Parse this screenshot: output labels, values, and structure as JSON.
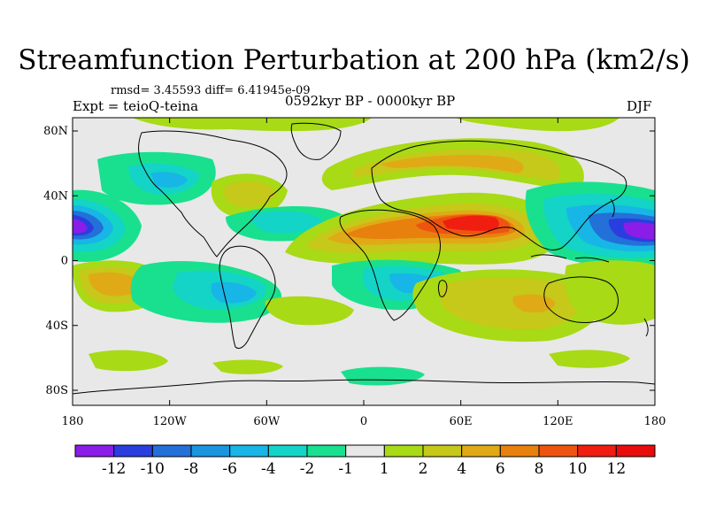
{
  "title": "Streamfunction Perturbation at 200 hPa (km2/s)",
  "stats_line": "rmsd= 3.45593 diff= 6.41945e-09",
  "experiment_label": "Expt = teioQ-teina",
  "period_label": "0592kyr BP - 0000kyr BP",
  "season_label": "DJF",
  "y_axis_ticks": [
    "80N",
    "40N",
    "0",
    "40S",
    "80S"
  ],
  "x_axis_ticks": [
    "180",
    "120W",
    "60W",
    "0",
    "60E",
    "120E",
    "180"
  ],
  "colorbar": {
    "labels": [
      "-12",
      "-10",
      "-8",
      "-6",
      "-4",
      "-2",
      "-1",
      "1",
      "2",
      "4",
      "6",
      "8",
      "10",
      "12"
    ],
    "colors": [
      "#8a1de8",
      "#2a3ee0",
      "#2370d8",
      "#1b95e0",
      "#17b6e6",
      "#13d4c6",
      "#19e08e",
      "#e8e8e8",
      "#a8da16",
      "#c6c81a",
      "#e0aa16",
      "#e8800e",
      "#ee5410",
      "#f01e10",
      "#e80c0c"
    ]
  },
  "palette": {
    "neutral": "#e8e8e8",
    "coast": "#000000"
  }
}
